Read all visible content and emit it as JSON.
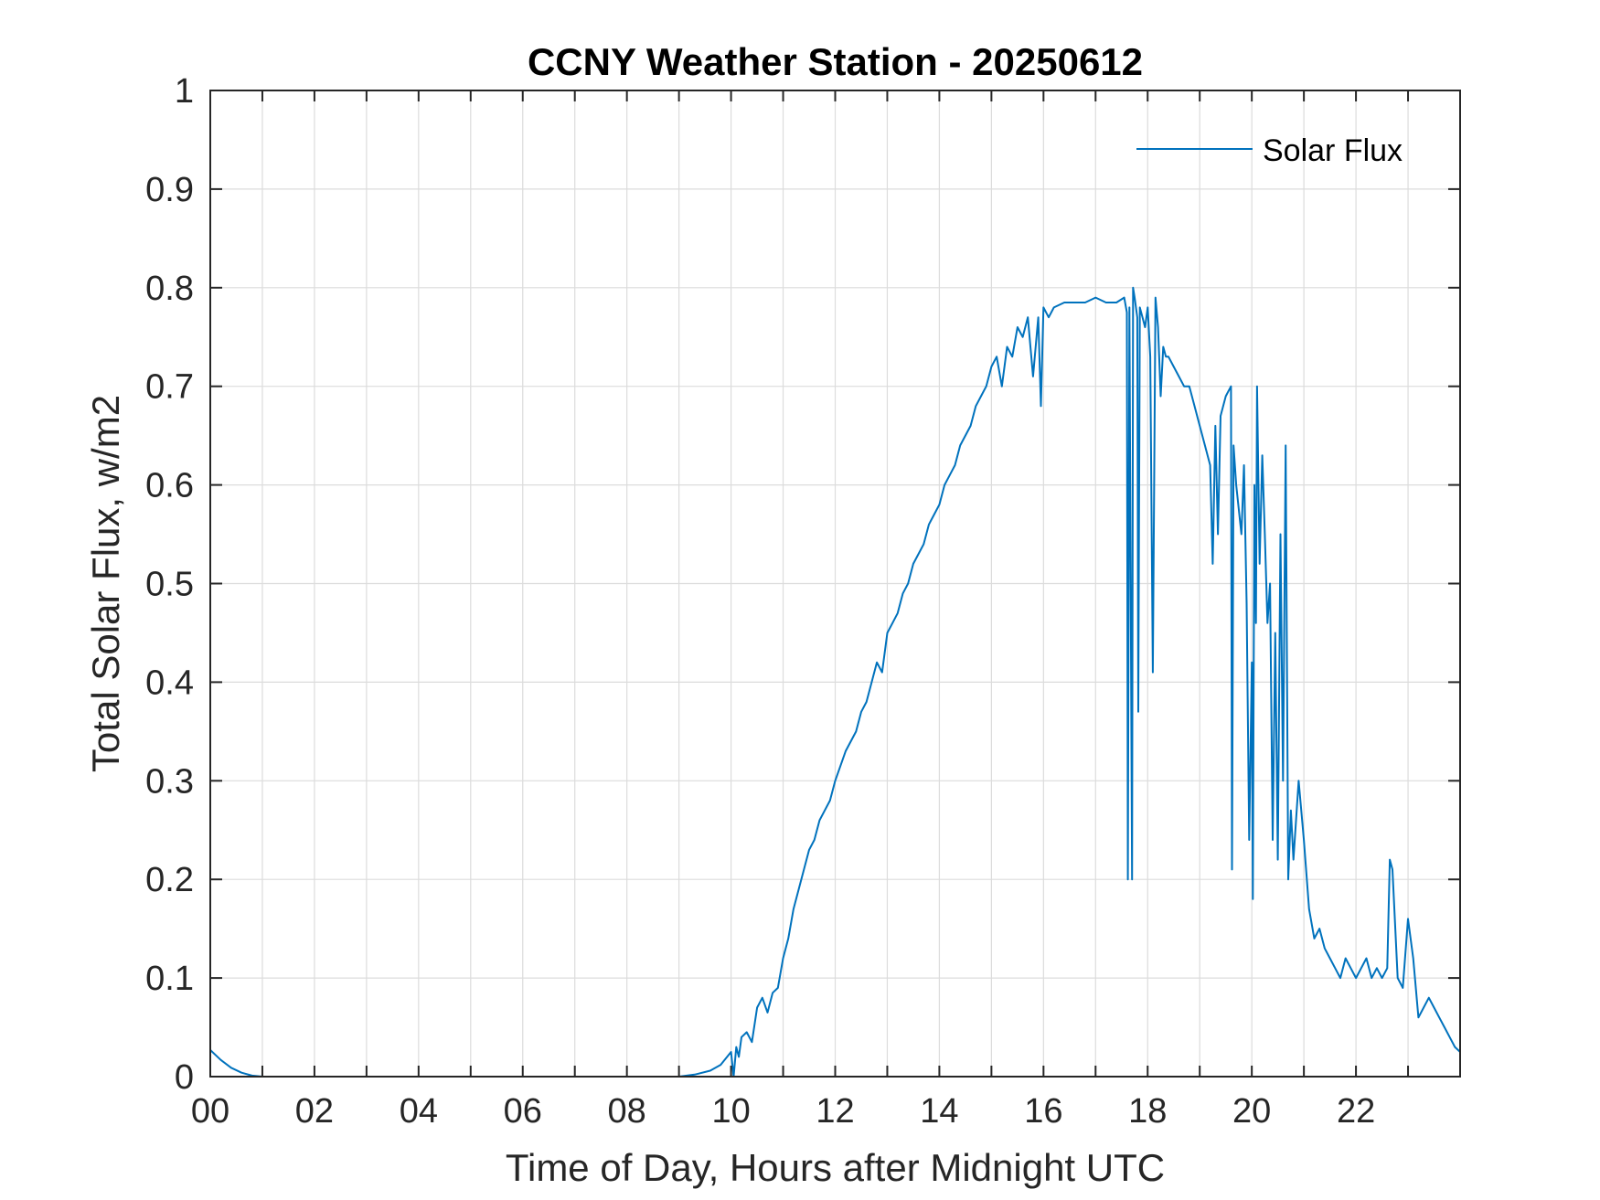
{
  "chart_data": {
    "type": "line",
    "title": "CCNY Weather Station - 20250612",
    "xlabel": "Time of Day, Hours after Midnight UTC",
    "ylabel": "Total Solar Flux, w/m2",
    "xlim": [
      0,
      24
    ],
    "ylim": [
      0,
      1
    ],
    "grid": true,
    "legend_position": "top-right",
    "x_ticks": [
      {
        "value": 0,
        "label": "00"
      },
      {
        "value": 2,
        "label": "02"
      },
      {
        "value": 4,
        "label": "04"
      },
      {
        "value": 6,
        "label": "06"
      },
      {
        "value": 8,
        "label": "08"
      },
      {
        "value": 10,
        "label": "10"
      },
      {
        "value": 12,
        "label": "12"
      },
      {
        "value": 14,
        "label": "14"
      },
      {
        "value": 16,
        "label": "16"
      },
      {
        "value": 18,
        "label": "18"
      },
      {
        "value": 20,
        "label": "20"
      },
      {
        "value": 22,
        "label": "22"
      }
    ],
    "y_ticks": [
      {
        "value": 0,
        "label": "0"
      },
      {
        "value": 0.1,
        "label": "0.1"
      },
      {
        "value": 0.2,
        "label": "0.2"
      },
      {
        "value": 0.3,
        "label": "0.3"
      },
      {
        "value": 0.4,
        "label": "0.4"
      },
      {
        "value": 0.5,
        "label": "0.5"
      },
      {
        "value": 0.6,
        "label": "0.6"
      },
      {
        "value": 0.7,
        "label": "0.7"
      },
      {
        "value": 0.8,
        "label": "0.8"
      },
      {
        "value": 0.9,
        "label": "0.9"
      },
      {
        "value": 1,
        "label": "1"
      }
    ],
    "series": [
      {
        "name": "Solar Flux",
        "color": "#0072BD",
        "x": [
          0,
          0.2,
          0.4,
          0.6,
          0.8,
          1.0,
          2.0,
          4.0,
          6.0,
          8.0,
          9.0,
          9.3,
          9.6,
          9.8,
          10.0,
          10.05,
          10.1,
          10.15,
          10.2,
          10.3,
          10.4,
          10.5,
          10.6,
          10.7,
          10.8,
          10.9,
          11.0,
          11.1,
          11.2,
          11.3,
          11.4,
          11.5,
          11.6,
          11.7,
          11.8,
          11.9,
          12.0,
          12.2,
          12.4,
          12.5,
          12.6,
          12.7,
          12.8,
          12.9,
          13.0,
          13.1,
          13.2,
          13.3,
          13.4,
          13.5,
          13.6,
          13.7,
          13.8,
          13.9,
          14.0,
          14.1,
          14.2,
          14.3,
          14.4,
          14.5,
          14.6,
          14.7,
          14.8,
          14.9,
          15.0,
          15.1,
          15.2,
          15.3,
          15.4,
          15.5,
          15.6,
          15.7,
          15.8,
          15.9,
          15.95,
          16.0,
          16.1,
          16.2,
          16.4,
          16.6,
          16.8,
          17.0,
          17.2,
          17.4,
          17.55,
          17.6,
          17.62,
          17.65,
          17.7,
          17.72,
          17.75,
          17.8,
          17.82,
          17.85,
          17.9,
          17.95,
          18.0,
          18.05,
          18.1,
          18.15,
          18.2,
          18.25,
          18.3,
          18.35,
          18.4,
          18.5,
          18.6,
          18.7,
          18.8,
          18.9,
          19.0,
          19.1,
          19.2,
          19.25,
          19.3,
          19.35,
          19.4,
          19.5,
          19.6,
          19.62,
          19.65,
          19.7,
          19.8,
          19.85,
          19.9,
          19.95,
          20.0,
          20.02,
          20.05,
          20.08,
          20.1,
          20.15,
          20.2,
          20.25,
          20.3,
          20.35,
          20.4,
          20.45,
          20.5,
          20.55,
          20.6,
          20.65,
          20.7,
          20.75,
          20.8,
          20.9,
          21.0,
          21.1,
          21.2,
          21.3,
          21.4,
          21.5,
          21.6,
          21.7,
          21.8,
          21.9,
          22.0,
          22.1,
          22.2,
          22.3,
          22.4,
          22.5,
          22.6,
          22.65,
          22.7,
          22.8,
          22.9,
          23.0,
          23.1,
          23.2,
          23.3,
          23.4,
          23.5,
          23.6,
          23.7,
          23.8,
          23.9,
          24.0
        ],
        "values": [
          0.027,
          0.017,
          0.009,
          0.004,
          0.001,
          0.0,
          0.0,
          0.0,
          0.0,
          0.0,
          0.0,
          0.002,
          0.006,
          0.012,
          0.025,
          0.0,
          0.03,
          0.02,
          0.04,
          0.045,
          0.035,
          0.07,
          0.08,
          0.065,
          0.085,
          0.09,
          0.12,
          0.14,
          0.17,
          0.19,
          0.21,
          0.23,
          0.24,
          0.26,
          0.27,
          0.28,
          0.3,
          0.33,
          0.35,
          0.37,
          0.38,
          0.4,
          0.42,
          0.41,
          0.45,
          0.46,
          0.47,
          0.49,
          0.5,
          0.52,
          0.53,
          0.54,
          0.56,
          0.57,
          0.58,
          0.6,
          0.61,
          0.62,
          0.64,
          0.65,
          0.66,
          0.68,
          0.69,
          0.7,
          0.72,
          0.73,
          0.7,
          0.74,
          0.73,
          0.76,
          0.75,
          0.77,
          0.71,
          0.77,
          0.68,
          0.78,
          0.77,
          0.78,
          0.785,
          0.785,
          0.785,
          0.79,
          0.785,
          0.785,
          0.79,
          0.775,
          0.2,
          0.78,
          0.2,
          0.8,
          0.79,
          0.77,
          0.37,
          0.78,
          0.77,
          0.76,
          0.78,
          0.73,
          0.41,
          0.79,
          0.76,
          0.69,
          0.74,
          0.73,
          0.73,
          0.72,
          0.71,
          0.7,
          0.7,
          0.68,
          0.66,
          0.64,
          0.62,
          0.52,
          0.66,
          0.55,
          0.67,
          0.69,
          0.7,
          0.21,
          0.64,
          0.6,
          0.55,
          0.62,
          0.48,
          0.24,
          0.42,
          0.18,
          0.6,
          0.46,
          0.7,
          0.52,
          0.63,
          0.55,
          0.46,
          0.5,
          0.24,
          0.45,
          0.22,
          0.55,
          0.3,
          0.64,
          0.2,
          0.27,
          0.22,
          0.3,
          0.24,
          0.17,
          0.14,
          0.15,
          0.13,
          0.12,
          0.11,
          0.1,
          0.12,
          0.11,
          0.1,
          0.11,
          0.12,
          0.1,
          0.11,
          0.1,
          0.11,
          0.22,
          0.21,
          0.1,
          0.09,
          0.16,
          0.12,
          0.06,
          0.07,
          0.08,
          0.07,
          0.06,
          0.05,
          0.04,
          0.03,
          0.025
        ]
      }
    ],
    "legend": [
      {
        "label": "Solar Flux",
        "color": "#0072BD"
      }
    ]
  }
}
